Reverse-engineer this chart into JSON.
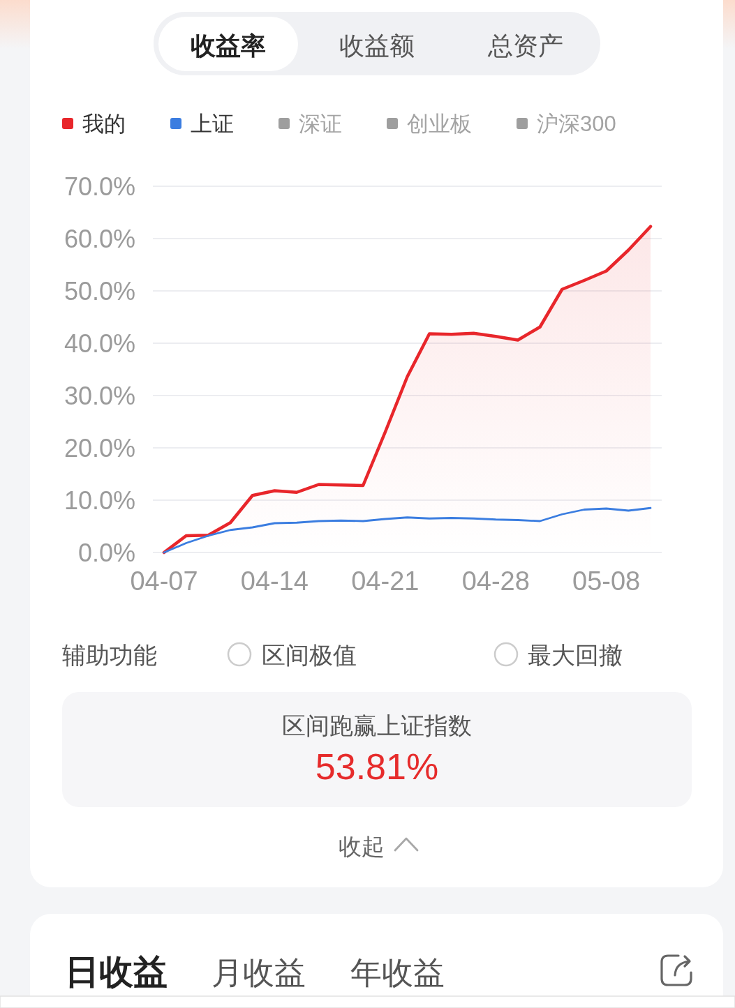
{
  "chart_data": {
    "type": "line",
    "categories": [
      "04-07",
      null,
      null,
      null,
      null,
      "04-14",
      null,
      null,
      null,
      null,
      "04-21",
      null,
      null,
      null,
      null,
      "04-28",
      null,
      null,
      null,
      null,
      "05-08",
      null,
      null
    ],
    "series": [
      {
        "name": "我的",
        "type": "area",
        "color": "#e8262b",
        "values": [
          0,
          3.2,
          3.3,
          5.7,
          10.9,
          11.8,
          11.5,
          13.0,
          12.9,
          12.8,
          23.0,
          33.6,
          41.8,
          41.7,
          41.9,
          41.3,
          40.6,
          43.1,
          50.3,
          52.0,
          53.8,
          57.8,
          62.3
        ]
      },
      {
        "name": "上证",
        "type": "line",
        "color": "#3b7de0",
        "values": [
          0,
          1.8,
          3.2,
          4.3,
          4.8,
          5.6,
          5.7,
          6.0,
          6.1,
          6.0,
          6.4,
          6.7,
          6.5,
          6.6,
          6.5,
          6.3,
          6.2,
          6.0,
          7.3,
          8.2,
          8.4,
          8.0,
          8.5
        ]
      },
      {
        "name": "深证",
        "color": "#9e9e9e",
        "values": [
          null,
          null,
          null,
          null,
          null,
          null,
          null,
          null,
          null,
          null,
          null,
          null,
          null,
          null,
          null,
          null,
          null,
          null,
          null,
          null,
          null,
          null,
          null
        ]
      },
      {
        "name": "创业板",
        "color": "#9e9e9e",
        "values": [
          null,
          null,
          null,
          null,
          null,
          null,
          null,
          null,
          null,
          null,
          null,
          null,
          null,
          null,
          null,
          null,
          null,
          null,
          null,
          null,
          null,
          null,
          null
        ]
      },
      {
        "name": "沪深300",
        "color": "#9e9e9e",
        "values": [
          null,
          null,
          null,
          null,
          null,
          null,
          null,
          null,
          null,
          null,
          null,
          null,
          null,
          null,
          null,
          null,
          null,
          null,
          null,
          null,
          null,
          null,
          null
        ]
      }
    ],
    "ylim": [
      0,
      70
    ],
    "yticks": [
      {
        "value": 0,
        "label": "0.0%"
      },
      {
        "value": 10,
        "label": "10.0%"
      },
      {
        "value": 20,
        "label": "20.0%"
      },
      {
        "value": 30,
        "label": "30.0%"
      },
      {
        "value": 40,
        "label": "40.0%"
      },
      {
        "value": 50,
        "label": "50.0%"
      },
      {
        "value": 60,
        "label": "60.0%"
      },
      {
        "value": 70,
        "label": "70.0%"
      }
    ],
    "grid": "y",
    "legend": "top",
    "annotations": [
      "收益率",
      "收益额",
      "总资产",
      "辅助功能",
      "区间极值",
      "最大回撤",
      "区间跑赢上证指数",
      "53.81%",
      "收起",
      "日收益",
      "月收益",
      "年收益"
    ]
  }
}
